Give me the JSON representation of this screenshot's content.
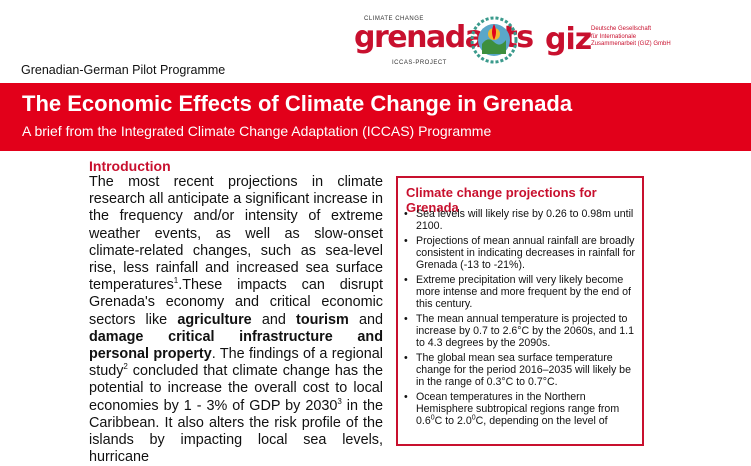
{
  "header": {
    "programme": "Grenadian-German Pilot Programme",
    "grenadapts_logo": {
      "top_text": "CLIMATE CHANGE",
      "word": "grenadapts",
      "bottom_text": "ICCAS-PROJECT"
    },
    "giz_logo": {
      "word": "giz",
      "line1": "Deutsche Gesellschaft",
      "line2": "für Internationale",
      "line3": "Zusammenarbeit (GIZ) GmbH"
    }
  },
  "banner": {
    "title": "The Economic Effects of Climate Change in Grenada",
    "subtitle": "A brief from the Integrated Climate Change Adaptation (ICCAS) Programme",
    "color": "#e2001a"
  },
  "introduction": {
    "heading": "Introduction",
    "p1": "The most recent projections in climate research all anticipate a significant increase in the frequency and/or intensity of extreme weather events, as well as slow-onset climate-related changes, such as sea-level rise, less rainfall and increased sea surface temperatures",
    "sup1": "1",
    "p2": ".These impacts can disrupt Grenada's economy and critical economic sectors like ",
    "bold1": "agriculture",
    "p3": " and ",
    "bold2": "tourism",
    "p4": " and ",
    "bold3": "damage critical infrastructure and personal property",
    "p5": ". The findings of a regional study",
    "sup2": "2",
    "p6": " concluded that climate change has the potential to increase the overall cost to local economies by 1 - 3% of GDP by 2030",
    "sup3": "3",
    "p7": " in the Caribbean. It also alters the risk profile of the islands by impacting local sea levels, hurricane"
  },
  "projections_box": {
    "title": "Climate change projections for Grenada",
    "bullet": "•",
    "items": [
      "Sea levels will likely rise by 0.26 to 0.98m until 2100.",
      "Projections of mean annual rainfall are broadly consistent in indicating decreases in rainfall for Grenada (-13 to -21%).",
      "Extreme precipitation will very likely become more intense and more frequent by the end of this century.",
      "The mean annual temperature is projected to increase by 0.7 to 2.6°C by the 2060s, and 1.1 to 4.3 degrees by the 2090s.",
      "The global mean sea surface temperature change for the period 2016–2035 will likely be in the range of 0.3°C to 0.7°C."
    ],
    "last_item": {
      "text_a": "Ocean temperatures in the Northern Hemisphere subtropical regions range from 0.6",
      "deg1": "0",
      "text_b": "C to 2.0",
      "deg2": "0",
      "text_c": "C, depending on the level of"
    }
  }
}
